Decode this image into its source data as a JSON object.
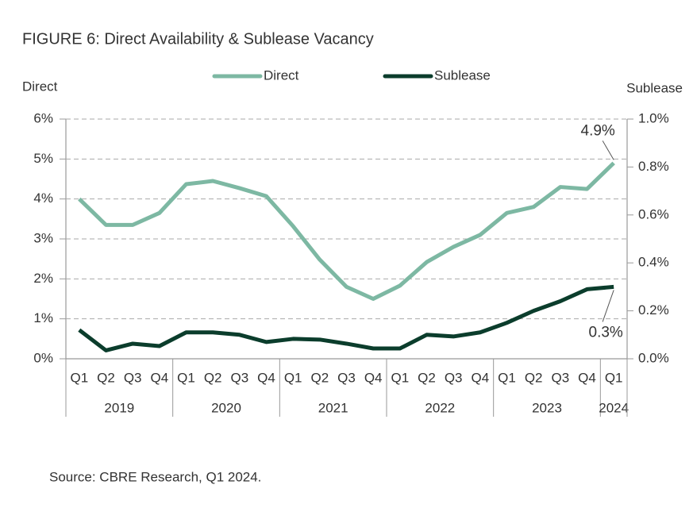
{
  "chart_data": {
    "type": "line",
    "title": "FIGURE 6: Direct Availability & Sublease Vacancy",
    "y_label": "Direct",
    "y2_label": "Sublease",
    "source": "Source: CBRE Research, Q1 2024.",
    "category_groups": [
      {
        "name": "2019",
        "categories": [
          "Q1",
          "Q2",
          "Q3",
          "Q4"
        ]
      },
      {
        "name": "2020",
        "categories": [
          "Q1",
          "Q2",
          "Q3",
          "Q4"
        ]
      },
      {
        "name": "2021",
        "categories": [
          "Q1",
          "Q2",
          "Q3",
          "Q4"
        ]
      },
      {
        "name": "2022",
        "categories": [
          "Q1",
          "Q2",
          "Q3",
          "Q4"
        ]
      },
      {
        "name": "2023",
        "categories": [
          "Q1",
          "Q2",
          "Q3",
          "Q4"
        ]
      },
      {
        "name": "2024",
        "categories": [
          "Q1"
        ]
      }
    ],
    "series": [
      {
        "name": "Direct",
        "color": "#7db8a3",
        "axis": "y",
        "values": [
          4.0,
          3.35,
          3.35,
          3.65,
          4.37,
          4.45,
          4.27,
          4.07,
          3.32,
          2.48,
          1.8,
          1.5,
          1.83,
          2.42,
          2.8,
          3.1,
          3.65,
          3.8,
          4.3,
          4.25,
          4.9
        ],
        "value_labels": [
          null,
          null,
          null,
          null,
          null,
          null,
          null,
          null,
          null,
          null,
          null,
          null,
          null,
          null,
          null,
          null,
          null,
          null,
          null,
          null,
          "4.9%"
        ]
      },
      {
        "name": "Sublease",
        "color": "#0b3d2c",
        "axis": "y2",
        "values": [
          0.12,
          0.035,
          0.063,
          0.053,
          0.11,
          0.11,
          0.1,
          0.07,
          0.083,
          0.08,
          0.063,
          0.043,
          0.043,
          0.1,
          0.093,
          0.11,
          0.15,
          0.2,
          0.24,
          0.29,
          0.3
        ],
        "value_labels": [
          null,
          null,
          null,
          null,
          null,
          null,
          null,
          null,
          null,
          null,
          null,
          null,
          null,
          null,
          null,
          null,
          null,
          null,
          null,
          null,
          "0.3%"
        ]
      }
    ],
    "ylim": [
      0,
      6
    ],
    "yticks": [
      {
        "value": 0,
        "label": "0%"
      },
      {
        "value": 1,
        "label": "1%"
      },
      {
        "value": 2,
        "label": "2%"
      },
      {
        "value": 3,
        "label": "3%"
      },
      {
        "value": 4,
        "label": "4%"
      },
      {
        "value": 5,
        "label": "5%"
      },
      {
        "value": 6,
        "label": "6%"
      }
    ],
    "y2lim": [
      0,
      1.0
    ],
    "y2ticks": [
      {
        "value": 0,
        "label": "0.0%"
      },
      {
        "value": 0.2,
        "label": "0.2%"
      },
      {
        "value": 0.4,
        "label": "0.4%"
      },
      {
        "value": 0.6,
        "label": "0.6%"
      },
      {
        "value": 0.8,
        "label": "0.8%"
      },
      {
        "value": 1.0,
        "label": "1.0%"
      }
    ],
    "grid": true
  }
}
